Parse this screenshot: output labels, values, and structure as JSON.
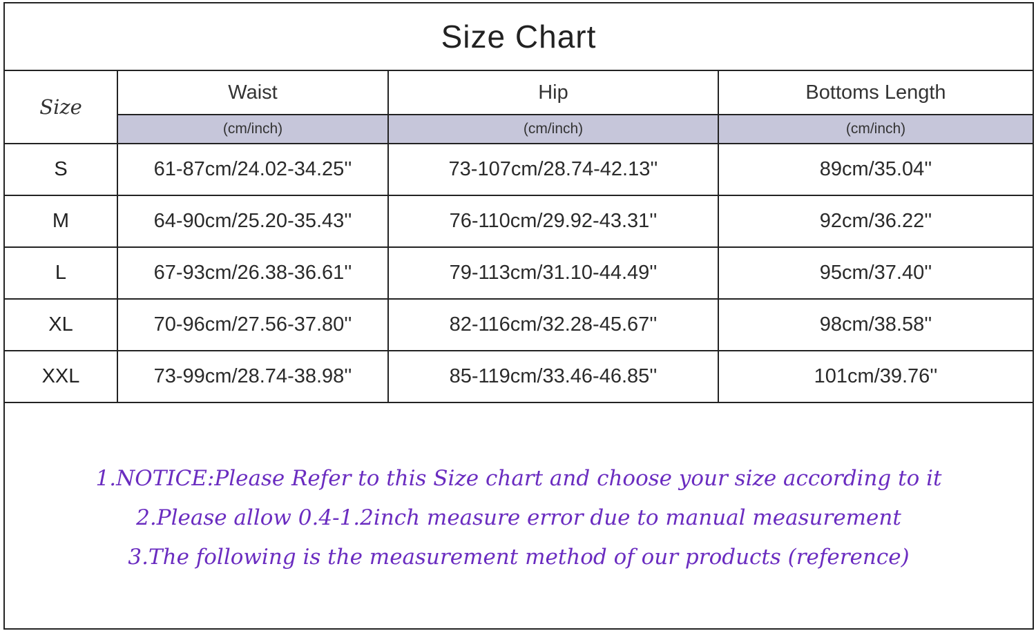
{
  "title": "Size Chart",
  "columns": {
    "size": "Size",
    "waist": "Waist",
    "hip": "Hip",
    "length": "Bottoms Length",
    "unit": "(cm/inch)"
  },
  "rows": [
    {
      "size": "S",
      "waist": "61-87cm/24.02-34.25''",
      "hip": "73-107cm/28.74-42.13''",
      "length": "89cm/35.04''"
    },
    {
      "size": "M",
      "waist": "64-90cm/25.20-35.43''",
      "hip": "76-110cm/29.92-43.31''",
      "length": "92cm/36.22''"
    },
    {
      "size": "L",
      "waist": "67-93cm/26.38-36.61''",
      "hip": "79-113cm/31.10-44.49''",
      "length": "95cm/37.40''"
    },
    {
      "size": "XL",
      "waist": "70-96cm/27.56-37.80''",
      "hip": "82-116cm/32.28-45.67''",
      "length": "98cm/38.58''"
    },
    {
      "size": "XXL",
      "waist": "73-99cm/28.74-38.98''",
      "hip": "85-119cm/33.46-46.85''",
      "length": "101cm/39.76''"
    }
  ],
  "notes": [
    "1.NOTICE:Please Refer to this Size chart and choose your size according to it",
    "2.Please allow 0.4-1.2inch measure error due to manual measurement",
    "3.The following is the measurement method of our products (reference)"
  ],
  "colors": {
    "notes": "#6a2cc0",
    "unit_row": "#c6c6da",
    "border": "#222222"
  }
}
